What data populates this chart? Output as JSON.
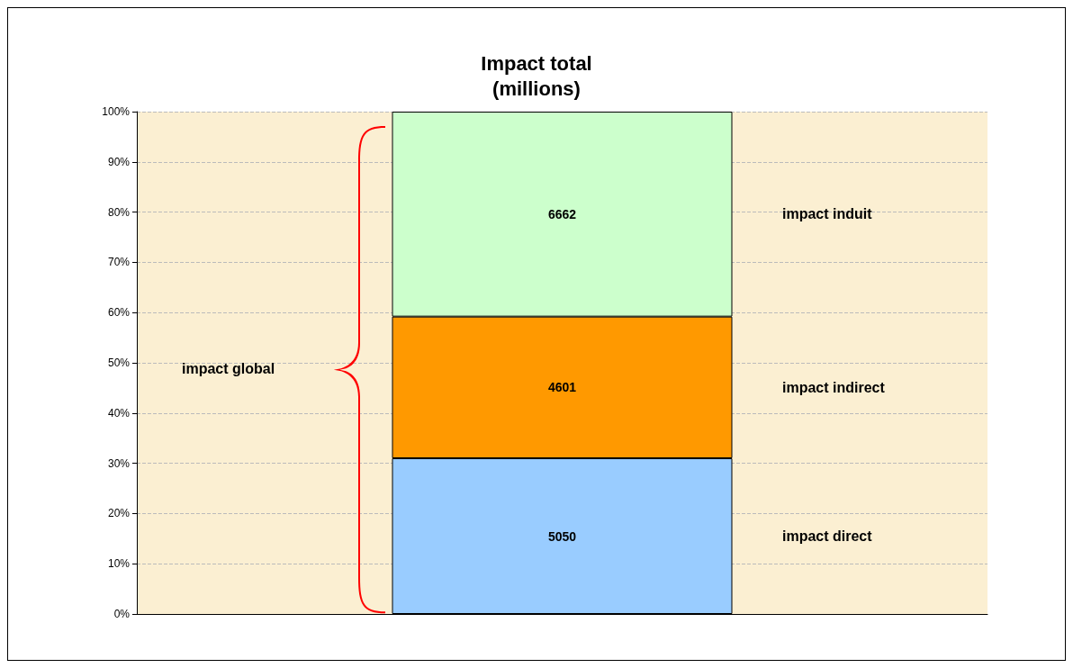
{
  "chart_data": {
    "type": "bar",
    "title": "Impact total\n(millions)",
    "categories": [
      null
    ],
    "stacked": true,
    "series": [
      {
        "name": "impact direct",
        "color": "#99ccff",
        "values": [
          31.0
        ]
      },
      {
        "name": "impact indirect",
        "color": "#ff9900",
        "values": [
          28.2
        ]
      },
      {
        "name": "impact induit",
        "color": "#ccffcc",
        "values": [
          40.8
        ]
      }
    ],
    "ylim": [
      0,
      100
    ],
    "yticks": [
      {
        "value": 0,
        "label": "0%"
      },
      {
        "value": 10,
        "label": "10%"
      },
      {
        "value": 20,
        "label": "20%"
      },
      {
        "value": 30,
        "label": "30%"
      },
      {
        "value": 40,
        "label": "40%"
      },
      {
        "value": 50,
        "label": "50%"
      },
      {
        "value": 60,
        "label": "60%"
      },
      {
        "value": 70,
        "label": "70%"
      },
      {
        "value": 80,
        "label": "80%"
      },
      {
        "value": 90,
        "label": "90%"
      },
      {
        "value": 100,
        "label": "100%"
      }
    ],
    "grid": "y",
    "legend": false,
    "annotations": [
      "impact global",
      "5050",
      "4601",
      "6662"
    ]
  }
}
